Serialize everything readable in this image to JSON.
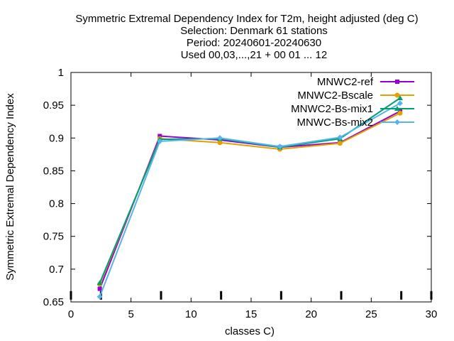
{
  "chart_data": {
    "type": "line",
    "title_lines": [
      "Symmetric Extremal Dependency Index  for T2m, height adjusted (deg C)",
      "Selection: Denmark     61 stations",
      "Period: 20240601-20240630",
      "Used 00,03,...,21 + 00 01 ... 12"
    ],
    "xlabel": "classes C)",
    "ylabel": "Symmetric Extremal Dependency Index",
    "xlim": [
      0,
      30
    ],
    "ylim": [
      0.65,
      1
    ],
    "x_ticks": [
      "0",
      "5",
      "10",
      "15",
      "20",
      "25",
      "30"
    ],
    "y_ticks": [
      "0.65",
      "0.7",
      "0.75",
      "0.8",
      "0.85",
      "0.9",
      "0.95",
      "1"
    ],
    "grid": false,
    "legend_position": "top-right",
    "baseline_markers_x": [
      0,
      2.5,
      7.5,
      12.5,
      17.5,
      22.5,
      27.5,
      30
    ],
    "x": [
      2.4,
      7.4,
      12.4,
      17.4,
      22.4,
      27.4
    ],
    "series": [
      {
        "name": "MNWC2-ref",
        "color": "#9400d3",
        "marker": "filled-square",
        "values": [
          0.67,
          0.903,
          0.897,
          0.886,
          0.893,
          0.941
        ]
      },
      {
        "name": "MNWC2-Bscale",
        "color": "#e69f00",
        "marker": "filled-circle",
        "values": [
          0.677,
          0.899,
          0.893,
          0.883,
          0.892,
          0.938
        ]
      },
      {
        "name": "MNWC2-Bs-mix1",
        "color": "#009e73",
        "marker": "filled-triangle",
        "values": [
          0.679,
          0.898,
          0.899,
          0.886,
          0.899,
          0.961
        ]
      },
      {
        "name": "MNWC-Bs-mix2",
        "color": "#56b4e9",
        "marker": "filled-diamond",
        "values": [
          0.658,
          0.895,
          0.9,
          0.887,
          0.901,
          0.953
        ]
      }
    ]
  }
}
